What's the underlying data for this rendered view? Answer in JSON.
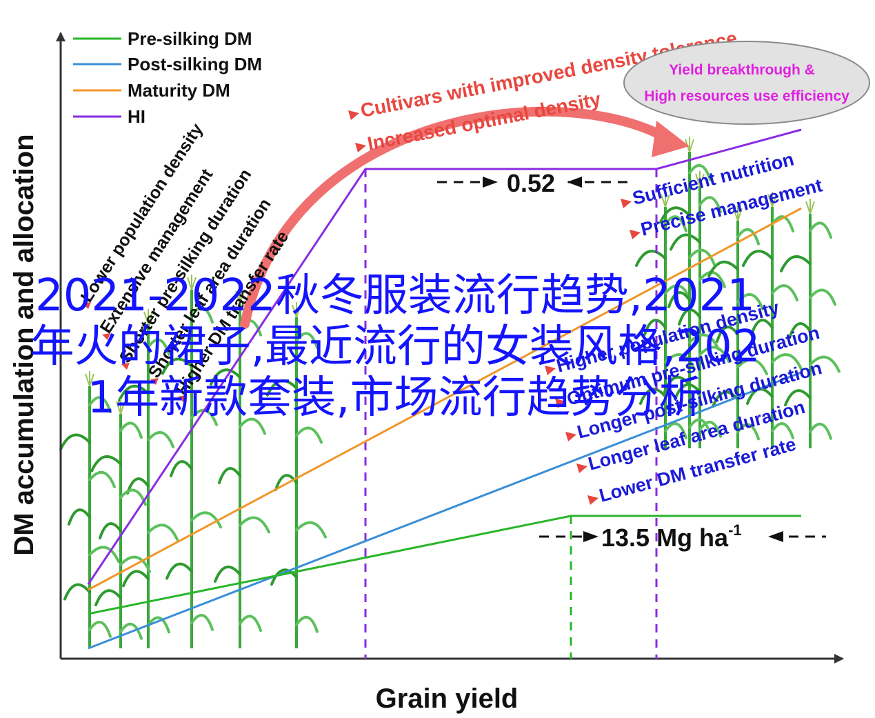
{
  "axes": {
    "xlabel": "Grain yield",
    "ylabel": "DM accumulation and allocation"
  },
  "legend": [
    {
      "label": "Pre-silking DM",
      "color": "#2ab52a"
    },
    {
      "label": "Post-silking DM",
      "color": "#3a8fd6"
    },
    {
      "label": "Maturity DM",
      "color": "#f0962a"
    },
    {
      "label": "HI",
      "color": "#8a2be2"
    }
  ],
  "left_factors": [
    "Lower population density",
    "Extensive management",
    "Shorter pre-silking duration",
    "Shorter leaf area duration",
    "Higher DM transfer rate"
  ],
  "top_arrow_labels": [
    "Cultivars with improved density tolerance",
    "Increased optimal density"
  ],
  "ellipse": {
    "line1": "Yield breakthrough &",
    "line2": "High resources use efficiency"
  },
  "right_top_factors": [
    "Sufficient nutrition",
    "Precise management"
  ],
  "right_bottom_factors": [
    "Higher population density",
    "Optimum pre-silking duration",
    "Longer post-silking duration",
    "Longer leaf area duration",
    "Lower DM transfer rate"
  ],
  "annotations": {
    "hi_gap": "0.52",
    "yield_gap_value": "13.5 Mg ha",
    "yield_gap_sup": "-1"
  },
  "overlay_title": "2021-2022秋冬服装流行趋势,2021年火的裙子,最近流行的女装风格,2021年新款套装,市场流行趋势分析",
  "colors": {
    "pre_silking": "#2ab52a",
    "post_silking": "#3a8fd6",
    "maturity": "#f0962a",
    "hi": "#8a2be2",
    "red_text": "#e8473f",
    "blue_text": "#1a1ad8",
    "big_arrow": "#f07070",
    "ellipse_text": "#e020e0",
    "overlay": "#1414ff"
  }
}
